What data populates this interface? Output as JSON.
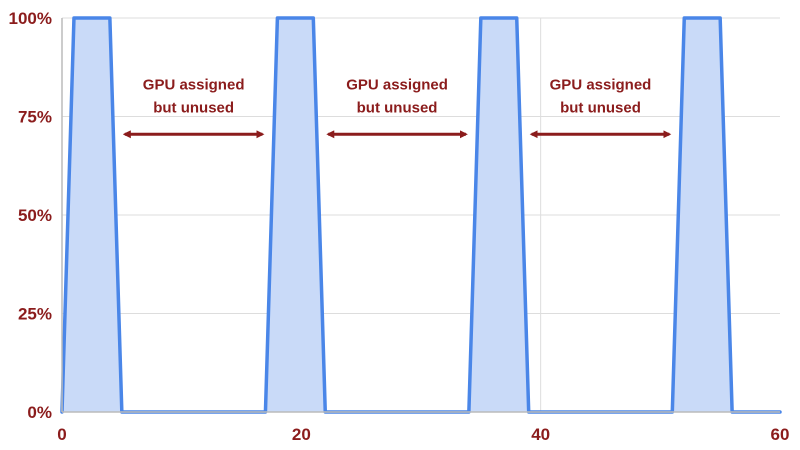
{
  "chart_data": {
    "type": "area",
    "title": "",
    "xlabel": "",
    "ylabel": "",
    "xlim": [
      0,
      60
    ],
    "ylim": [
      0,
      100
    ],
    "x_ticks": [
      "0",
      "20",
      "40",
      "60"
    ],
    "y_ticks": [
      "0%",
      "25%",
      "50%",
      "75%",
      "100%"
    ],
    "grid": true,
    "series": [
      {
        "x": [
          0,
          1,
          4,
          5,
          17,
          18,
          21,
          22,
          34,
          35,
          38,
          39,
          51,
          52,
          55,
          56,
          60
        ],
        "values": [
          0,
          100,
          100,
          0,
          0,
          100,
          100,
          0,
          0,
          100,
          100,
          0,
          0,
          100,
          100,
          0,
          0
        ]
      }
    ],
    "annotations": [
      {
        "line1": "GPU assigned",
        "line2": "but unused",
        "x_from": 5,
        "x_to": 17,
        "y": 71
      },
      {
        "line1": "GPU assigned",
        "line2": "but unused",
        "x_from": 22,
        "x_to": 34,
        "y": 71
      },
      {
        "line1": "GPU assigned",
        "line2": "but unused",
        "x_from": 39,
        "x_to": 51,
        "y": 71
      }
    ],
    "colors": {
      "line": "#4a86e8",
      "fill": "#c9daf8",
      "text": "#8b1c1c",
      "arrow": "#8b1c1c",
      "grid": "#dddddd",
      "axis": "#bbbbbb"
    }
  }
}
